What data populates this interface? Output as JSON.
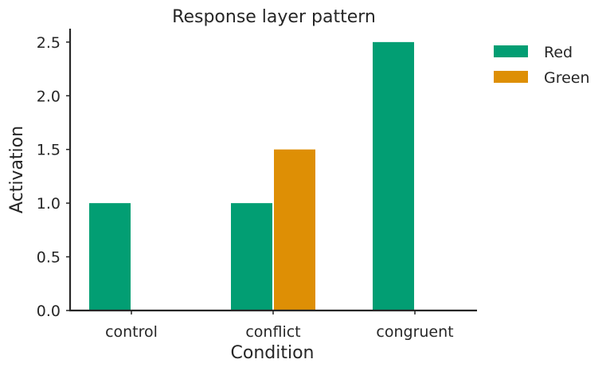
{
  "chart_data": {
    "type": "bar",
    "title": "Response layer pattern",
    "xlabel": "Condition",
    "ylabel": "Activation",
    "categories": [
      "control",
      "conflict",
      "congruent"
    ],
    "series": [
      {
        "name": "Red",
        "color": "#029e73",
        "values": [
          1.0,
          1.0,
          2.5
        ]
      },
      {
        "name": "Green",
        "color": "#de8f05",
        "values": [
          0.0,
          1.5,
          0.0
        ]
      }
    ],
    "ylim": [
      0,
      2.625
    ],
    "yticks": [
      0.0,
      0.5,
      1.0,
      1.5,
      2.0,
      2.5
    ],
    "ytick_labels": [
      "0.0",
      "0.5",
      "1.0",
      "1.5",
      "2.0",
      "2.5"
    ],
    "grid": false,
    "legend_position": "outside-top-right"
  }
}
